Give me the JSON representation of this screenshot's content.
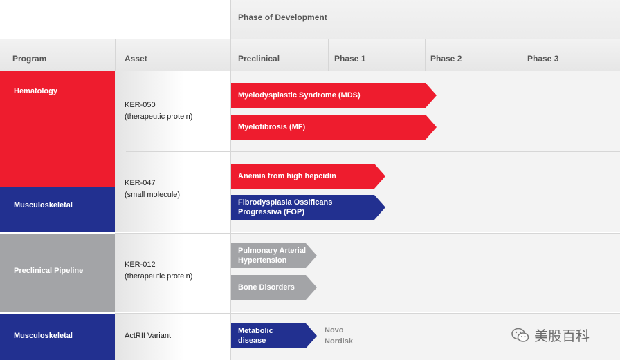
{
  "header": {
    "phase_title": "Phase of Development",
    "program": "Program",
    "asset": "Asset",
    "preclinical": "Preclinical",
    "phase1": "Phase 1",
    "phase2": "Phase 2",
    "phase3": "Phase 3"
  },
  "programs": {
    "hematology": "Hematology",
    "musculoskeletal_1": "Musculoskeletal",
    "preclinical_pipeline": "Preclinical Pipeline",
    "musculoskeletal_2": "Musculoskeletal"
  },
  "assets": {
    "ker050_name": "KER-050",
    "ker050_type": "(therapeutic protein)",
    "ker047_name": "KER-047",
    "ker047_type": "(small molecule)",
    "ker012_name": "KER-012",
    "ker012_type": "(therapeutic protein)",
    "actrii": "ActRII Variant"
  },
  "indications": {
    "mds": "Myelodysplastic Syndrome (MDS)",
    "mf": "Myelofibrosis (MF)",
    "anemia": "Anemia from high hepcidin",
    "fop_1": "Fibrodysplasia Ossificans",
    "fop_2": "Progressiva (FOP)",
    "pah_1": "Pulmonary Arterial",
    "pah_2": "Hypertension",
    "bone": "Bone Disorders",
    "metabolic_1": "Metabolic",
    "metabolic_2": "disease"
  },
  "partner": {
    "line1": "Novo",
    "line2": "Nordisk"
  },
  "watermark": "美股百科",
  "colors": {
    "red": "#ee1c2e",
    "blue": "#223090",
    "grey": "#a3a4a7"
  }
}
